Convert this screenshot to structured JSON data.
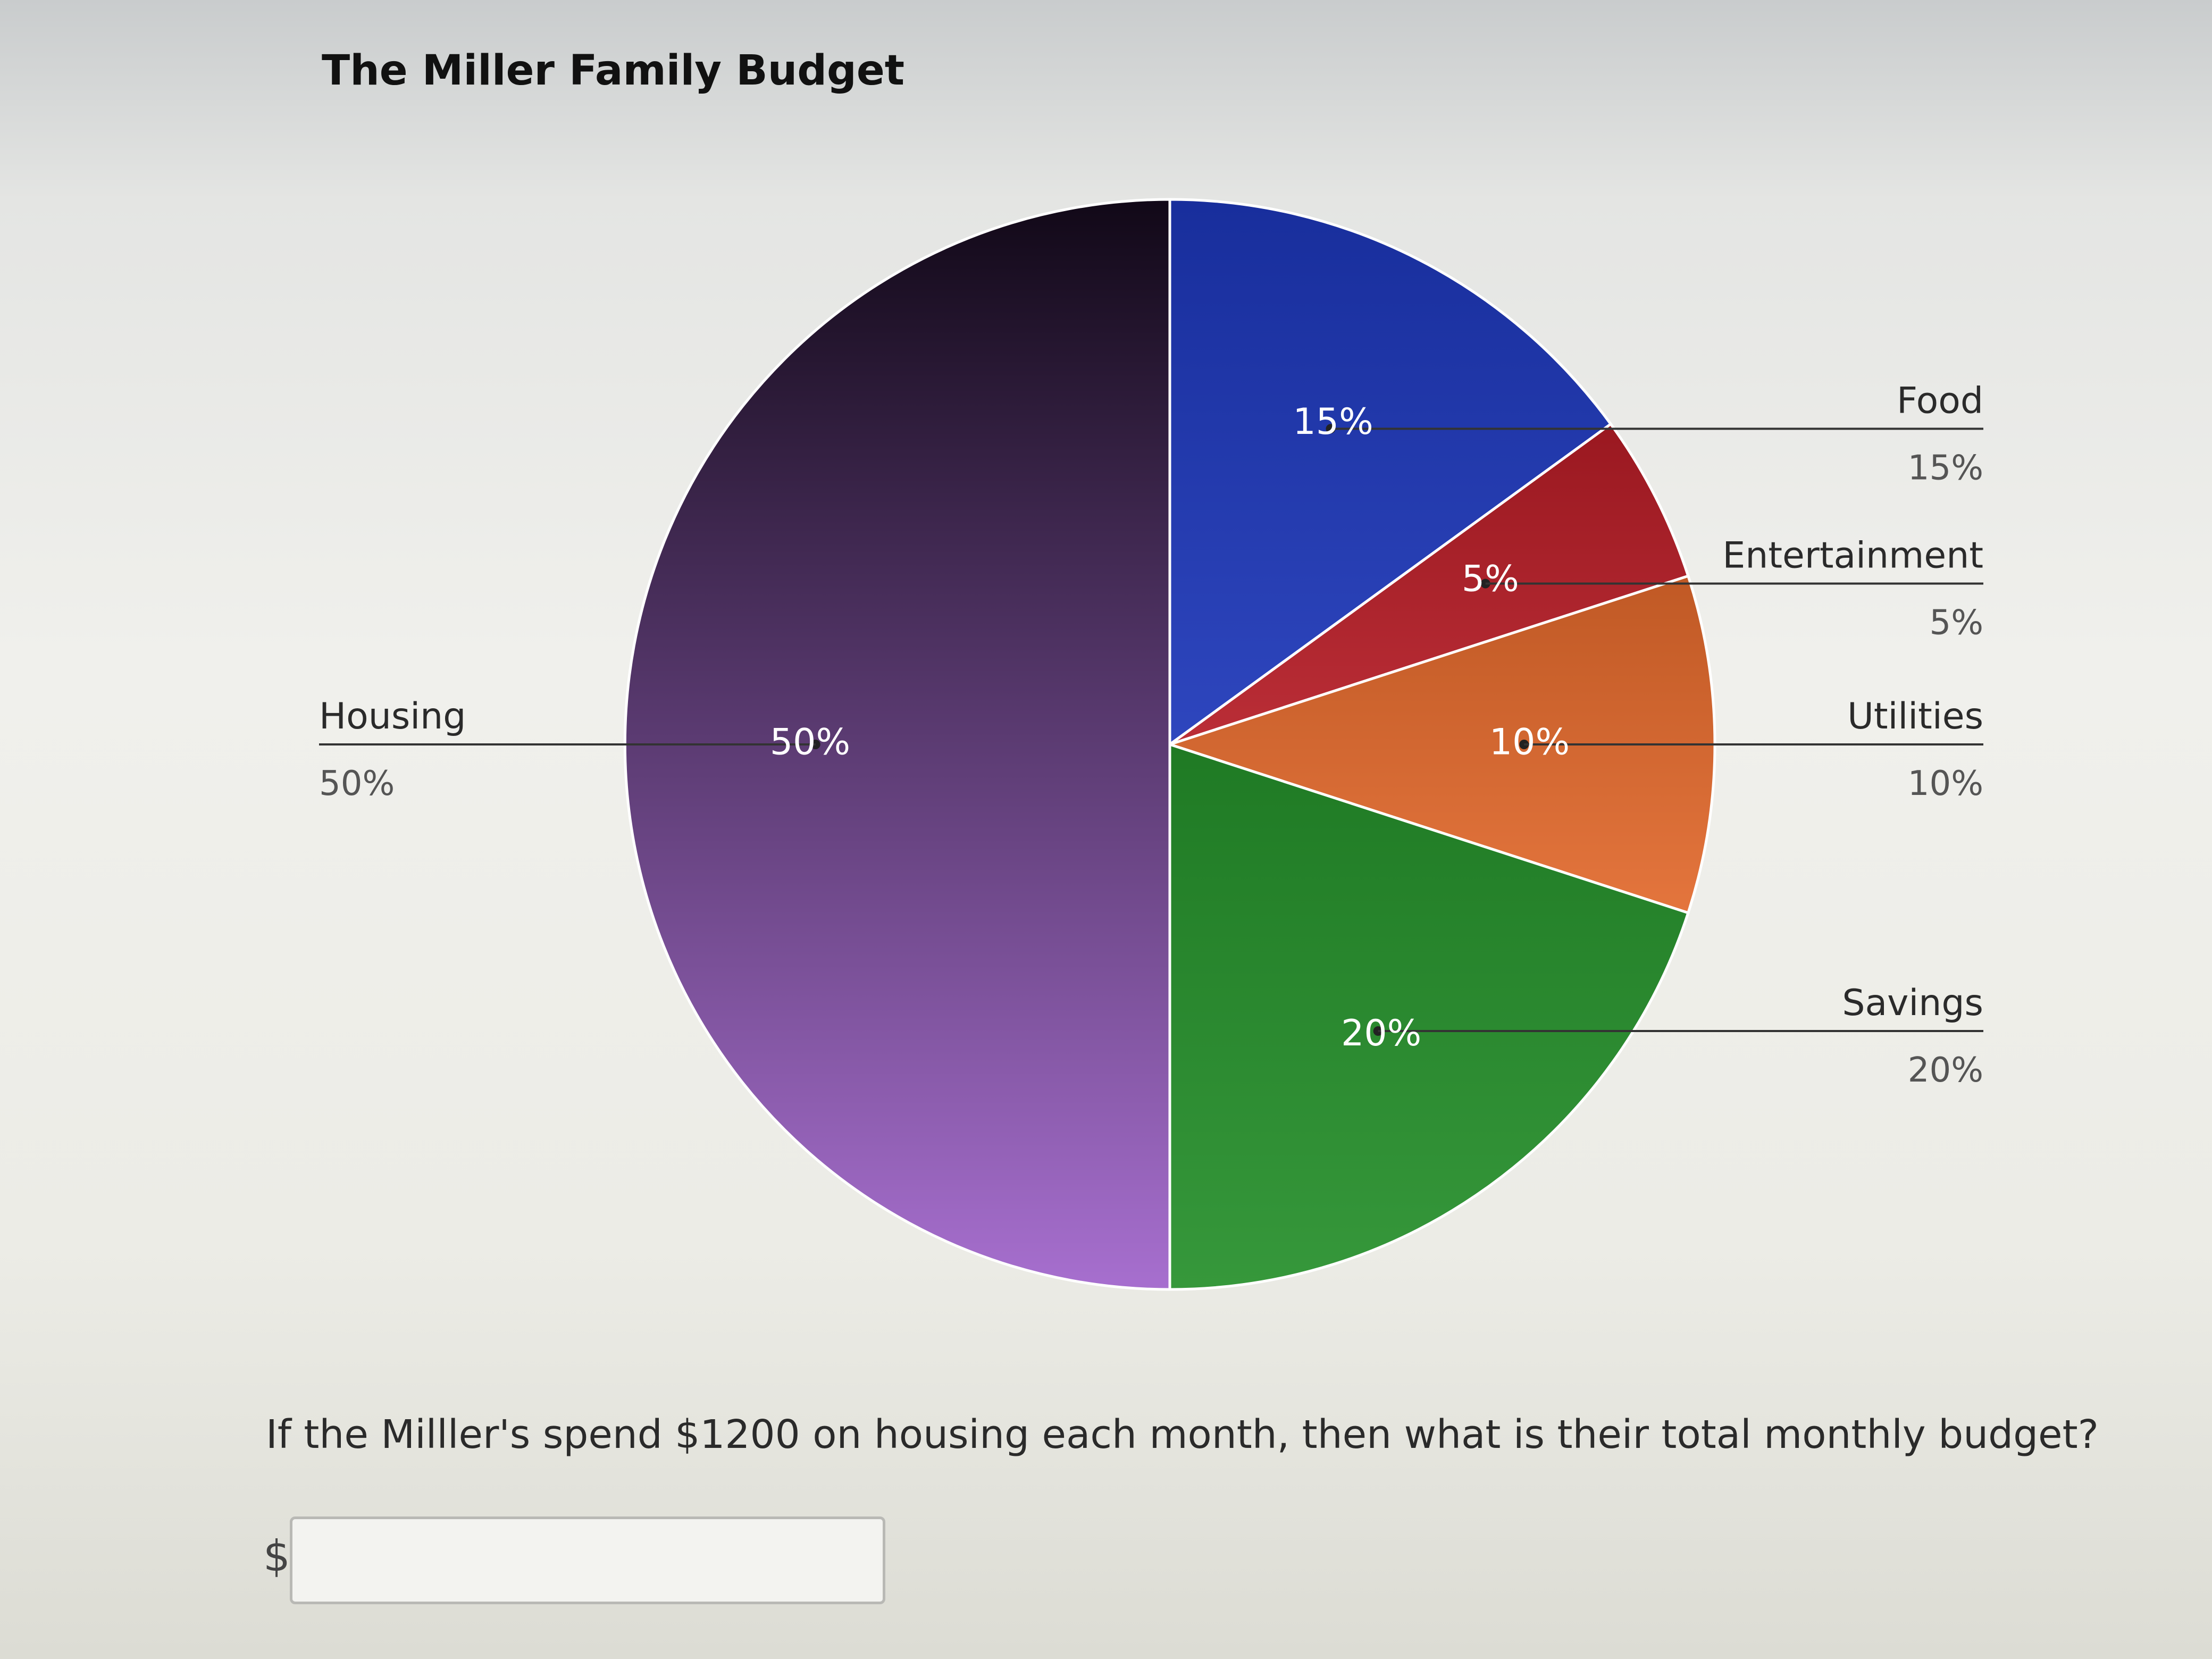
{
  "page": {
    "title": "The Miller Family Budget",
    "question": "If the Milller's spend $1200 on housing each month, then what is their total monthly budget?",
    "answer": {
      "currency_symbol": "$",
      "value": "",
      "placeholder": ""
    }
  },
  "chart_data": {
    "type": "pie",
    "title": "The Miller Family Budget",
    "unit": "%",
    "slices": [
      {
        "name": "Food",
        "value": 15,
        "label": "15%",
        "legend_value": "15%",
        "color": "#1c36b8"
      },
      {
        "name": "Entertainment",
        "value": 5,
        "label": "5%",
        "legend_value": "5%",
        "color": "#b51c26"
      },
      {
        "name": "Utilities",
        "value": 10,
        "label": "10%",
        "legend_value": "10%",
        "color": "#e2692c"
      },
      {
        "name": "Savings",
        "value": 20,
        "label": "20%",
        "legend_value": "20%",
        "color": "#258f2a"
      },
      {
        "name": "Housing",
        "value": 50,
        "label": "50%",
        "legend_value": "50%",
        "color": "#8a3fbf"
      }
    ],
    "legend": "labels-with-leader-lines",
    "start_angle": "top",
    "direction": "clockwise"
  }
}
